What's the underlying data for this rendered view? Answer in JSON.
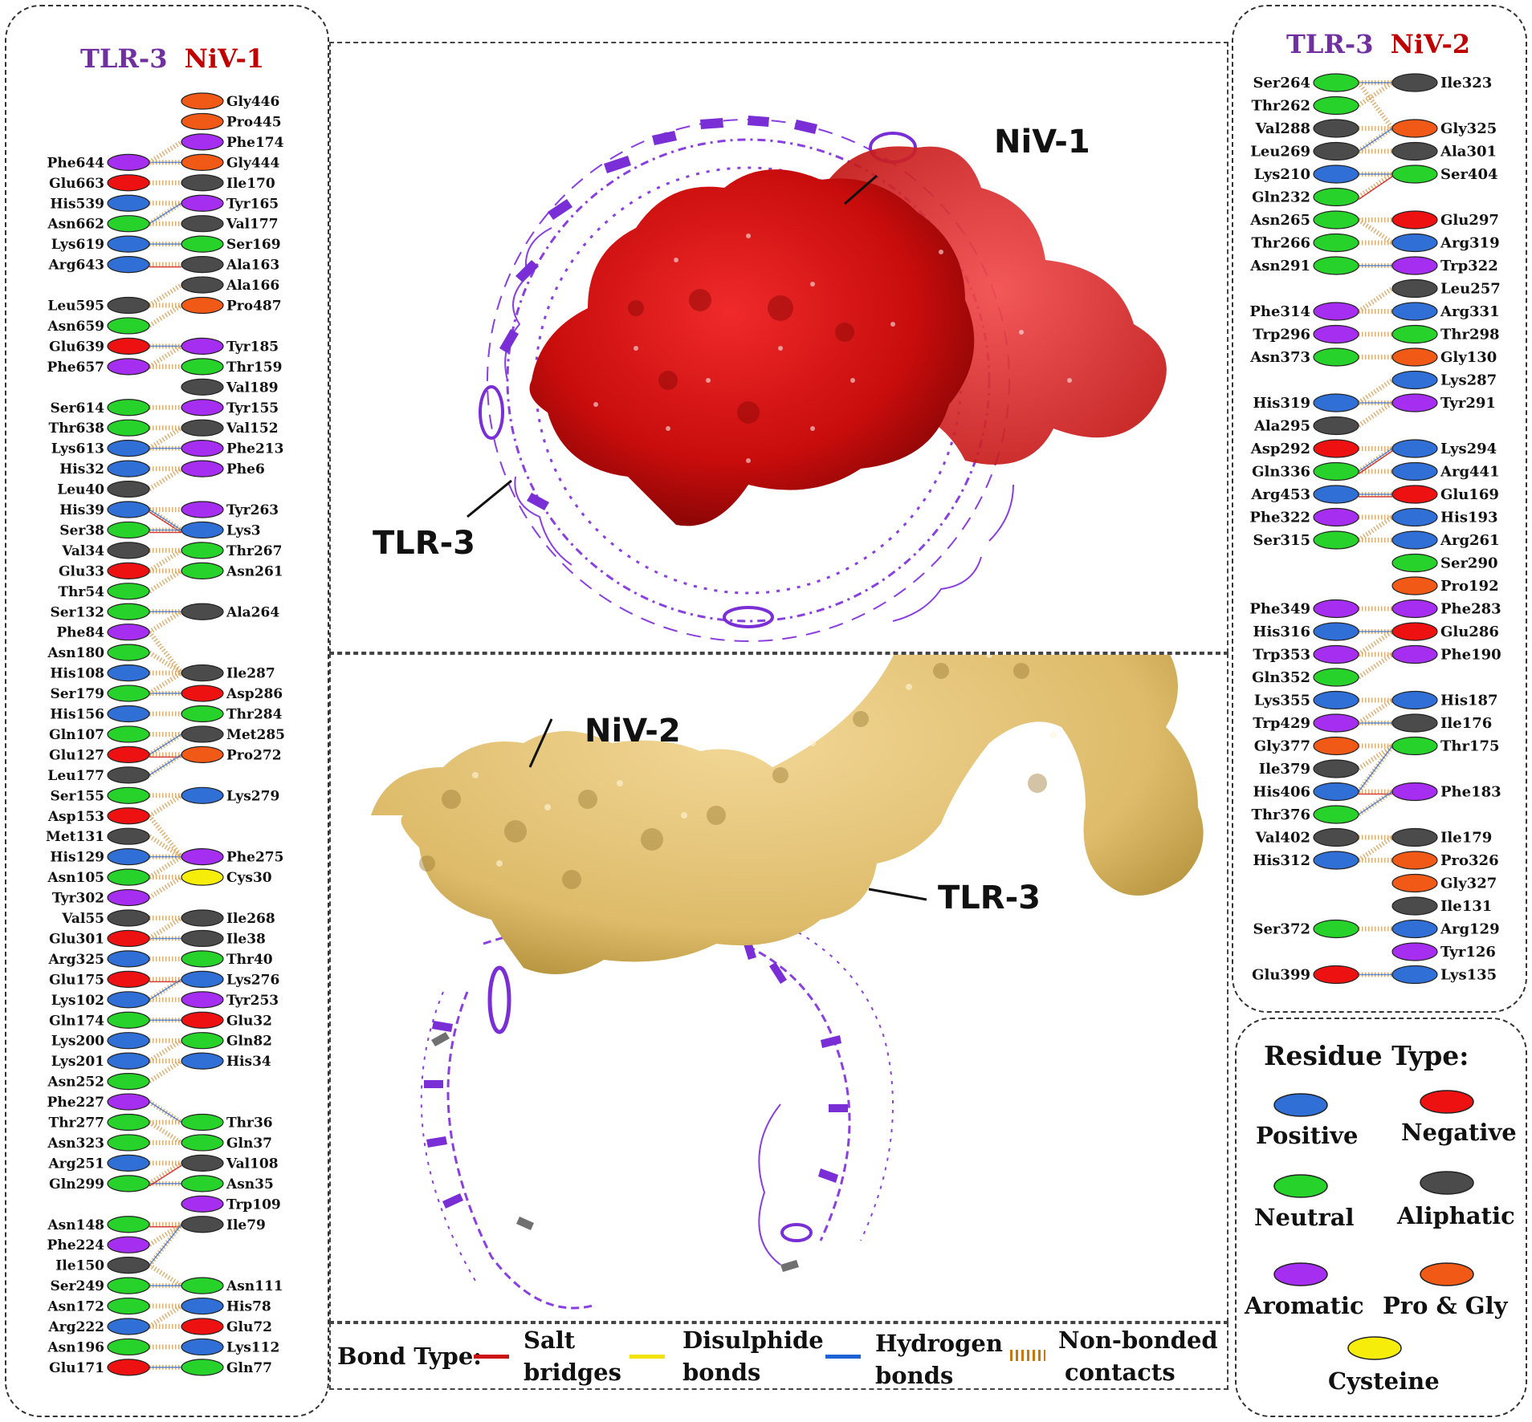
{
  "left_panel": {
    "title_a": "TLR-3",
    "title_b": "NiV-1",
    "left_residues": [
      {
        "name": "Phe644",
        "type": "aromatic",
        "row": 3
      },
      {
        "name": "Glu663",
        "type": "negative",
        "row": 4
      },
      {
        "name": "His539",
        "type": "positive",
        "row": 5
      },
      {
        "name": "Asn662",
        "type": "neutral",
        "row": 6
      },
      {
        "name": "Lys619",
        "type": "positive",
        "row": 7
      },
      {
        "name": "Arg643",
        "type": "positive",
        "row": 8
      },
      {
        "name": "Leu595",
        "type": "aliphatic",
        "row": 10
      },
      {
        "name": "Asn659",
        "type": "neutral",
        "row": 11
      },
      {
        "name": "Glu639",
        "type": "negative",
        "row": 12
      },
      {
        "name": "Phe657",
        "type": "aromatic",
        "row": 13
      },
      {
        "name": "Ser614",
        "type": "neutral",
        "row": 15
      },
      {
        "name": "Thr638",
        "type": "neutral",
        "row": 16
      },
      {
        "name": "Lys613",
        "type": "positive",
        "row": 17
      },
      {
        "name": "His32",
        "type": "positive",
        "row": 18
      },
      {
        "name": "Leu40",
        "type": "aliphatic",
        "row": 19
      },
      {
        "name": "His39",
        "type": "positive",
        "row": 20
      },
      {
        "name": "Ser38",
        "type": "neutral",
        "row": 21
      },
      {
        "name": "Val34",
        "type": "aliphatic",
        "row": 22
      },
      {
        "name": "Glu33",
        "type": "negative",
        "row": 23
      },
      {
        "name": "Thr54",
        "type": "neutral",
        "row": 24
      },
      {
        "name": "Ser132",
        "type": "neutral",
        "row": 25
      },
      {
        "name": "Phe84",
        "type": "aromatic",
        "row": 26
      },
      {
        "name": "Asn180",
        "type": "neutral",
        "row": 27
      },
      {
        "name": "His108",
        "type": "positive",
        "row": 28
      },
      {
        "name": "Ser179",
        "type": "neutral",
        "row": 29
      },
      {
        "name": "His156",
        "type": "positive",
        "row": 30
      },
      {
        "name": "Gln107",
        "type": "neutral",
        "row": 31
      },
      {
        "name": "Glu127",
        "type": "negative",
        "row": 32
      },
      {
        "name": "Leu177",
        "type": "aliphatic",
        "row": 33
      },
      {
        "name": "Ser155",
        "type": "neutral",
        "row": 34
      },
      {
        "name": "Asp153",
        "type": "negative",
        "row": 35
      },
      {
        "name": "Met131",
        "type": "aliphatic",
        "row": 36
      },
      {
        "name": "His129",
        "type": "positive",
        "row": 37
      },
      {
        "name": "Asn105",
        "type": "neutral",
        "row": 38
      },
      {
        "name": "Tyr302",
        "type": "aromatic",
        "row": 39
      },
      {
        "name": "Val55",
        "type": "aliphatic",
        "row": 40
      },
      {
        "name": "Glu301",
        "type": "negative",
        "row": 41
      },
      {
        "name": "Arg325",
        "type": "positive",
        "row": 42
      },
      {
        "name": "Glu175",
        "type": "negative",
        "row": 43
      },
      {
        "name": "Lys102",
        "type": "positive",
        "row": 44
      },
      {
        "name": "Gln174",
        "type": "neutral",
        "row": 45
      },
      {
        "name": "Lys200",
        "type": "positive",
        "row": 46
      },
      {
        "name": "Lys201",
        "type": "positive",
        "row": 47
      },
      {
        "name": "Asn252",
        "type": "neutral",
        "row": 48
      },
      {
        "name": "Phe227",
        "type": "aromatic",
        "row": 49
      },
      {
        "name": "Thr277",
        "type": "neutral",
        "row": 50
      },
      {
        "name": "Asn323",
        "type": "neutral",
        "row": 51
      },
      {
        "name": "Arg251",
        "type": "positive",
        "row": 52
      },
      {
        "name": "Gln299",
        "type": "neutral",
        "row": 53
      },
      {
        "name": "Asn148",
        "type": "neutral",
        "row": 55
      },
      {
        "name": "Phe224",
        "type": "aromatic",
        "row": 56
      },
      {
        "name": "Ile150",
        "type": "aliphatic",
        "row": 57
      },
      {
        "name": "Ser249",
        "type": "neutral",
        "row": 58
      },
      {
        "name": "Asn172",
        "type": "neutral",
        "row": 59
      },
      {
        "name": "Arg222",
        "type": "positive",
        "row": 60
      },
      {
        "name": "Asn196",
        "type": "neutral",
        "row": 61
      },
      {
        "name": "Glu171",
        "type": "negative",
        "row": 62
      }
    ],
    "right_residues": [
      {
        "name": "Gly446",
        "type": "progly",
        "row": 0
      },
      {
        "name": "Pro445",
        "type": "progly",
        "row": 1
      },
      {
        "name": "Phe174",
        "type": "aromatic",
        "row": 2
      },
      {
        "name": "Gly444",
        "type": "progly",
        "row": 3
      },
      {
        "name": "Ile170",
        "type": "aliphatic",
        "row": 4
      },
      {
        "name": "Tyr165",
        "type": "aromatic",
        "row": 5
      },
      {
        "name": "Val177",
        "type": "aliphatic",
        "row": 6
      },
      {
        "name": "Ser169",
        "type": "neutral",
        "row": 7
      },
      {
        "name": "Ala163",
        "type": "aliphatic",
        "row": 8
      },
      {
        "name": "Ala166",
        "type": "aliphatic",
        "row": 9
      },
      {
        "name": "Pro487",
        "type": "progly",
        "row": 10
      },
      {
        "name": "Tyr185",
        "type": "aromatic",
        "row": 12
      },
      {
        "name": "Thr159",
        "type": "neutral",
        "row": 13
      },
      {
        "name": "Val189",
        "type": "aliphatic",
        "row": 14
      },
      {
        "name": "Tyr155",
        "type": "aromatic",
        "row": 15
      },
      {
        "name": "Val152",
        "type": "aliphatic",
        "row": 16
      },
      {
        "name": "Phe213",
        "type": "aromatic",
        "row": 17
      },
      {
        "name": "Phe6",
        "type": "aromatic",
        "row": 18
      },
      {
        "name": "Tyr263",
        "type": "aromatic",
        "row": 20
      },
      {
        "name": "Lys3",
        "type": "positive",
        "row": 21
      },
      {
        "name": "Thr267",
        "type": "neutral",
        "row": 22
      },
      {
        "name": "Asn261",
        "type": "neutral",
        "row": 23
      },
      {
        "name": "Ala264",
        "type": "aliphatic",
        "row": 25
      },
      {
        "name": "Ile287",
        "type": "aliphatic",
        "row": 28
      },
      {
        "name": "Asp286",
        "type": "negative",
        "row": 29
      },
      {
        "name": "Thr284",
        "type": "neutral",
        "row": 30
      },
      {
        "name": "Met285",
        "type": "aliphatic",
        "row": 31
      },
      {
        "name": "Pro272",
        "type": "progly",
        "row": 32
      },
      {
        "name": "Lys279",
        "type": "positive",
        "row": 34
      },
      {
        "name": "Phe275",
        "type": "aromatic",
        "row": 37
      },
      {
        "name": "Cys30",
        "type": "cysteine",
        "row": 38
      },
      {
        "name": "Ile268",
        "type": "aliphatic",
        "row": 40
      },
      {
        "name": "Ile38",
        "type": "aliphatic",
        "row": 41
      },
      {
        "name": "Thr40",
        "type": "neutral",
        "row": 42
      },
      {
        "name": "Lys276",
        "type": "positive",
        "row": 43
      },
      {
        "name": "Tyr253",
        "type": "aromatic",
        "row": 44
      },
      {
        "name": "Glu32",
        "type": "negative",
        "row": 45
      },
      {
        "name": "Gln82",
        "type": "neutral",
        "row": 46
      },
      {
        "name": "His34",
        "type": "positive",
        "row": 47
      },
      {
        "name": "Thr36",
        "type": "neutral",
        "row": 50
      },
      {
        "name": "Gln37",
        "type": "neutral",
        "row": 51
      },
      {
        "name": "Val108",
        "type": "aliphatic",
        "row": 52
      },
      {
        "name": "Asn35",
        "type": "neutral",
        "row": 53
      },
      {
        "name": "Trp109",
        "type": "aromatic",
        "row": 54
      },
      {
        "name": "Ile79",
        "type": "aliphatic",
        "row": 55
      },
      {
        "name": "Asn111",
        "type": "neutral",
        "row": 58
      },
      {
        "name": "His78",
        "type": "positive",
        "row": 59
      },
      {
        "name": "Glu72",
        "type": "negative",
        "row": 60
      },
      {
        "name": "Lys112",
        "type": "positive",
        "row": 61
      },
      {
        "name": "Gln77",
        "type": "neutral",
        "row": 62
      }
    ]
  },
  "right_panel": {
    "title_a": "TLR-3",
    "title_b": "NiV-2",
    "left_residues": [
      {
        "name": "Ser264",
        "type": "neutral",
        "row": 0
      },
      {
        "name": "Thr262",
        "type": "neutral",
        "row": 1
      },
      {
        "name": "Val288",
        "type": "aliphatic",
        "row": 2
      },
      {
        "name": "Leu269",
        "type": "aliphatic",
        "row": 3
      },
      {
        "name": "Lys210",
        "type": "positive",
        "row": 4
      },
      {
        "name": "Gln232",
        "type": "neutral",
        "row": 5
      },
      {
        "name": "Asn265",
        "type": "neutral",
        "row": 6
      },
      {
        "name": "Thr266",
        "type": "neutral",
        "row": 7
      },
      {
        "name": "Asn291",
        "type": "neutral",
        "row": 8
      },
      {
        "name": "Phe314",
        "type": "aromatic",
        "row": 10
      },
      {
        "name": "Trp296",
        "type": "aromatic",
        "row": 11
      },
      {
        "name": "Asn373",
        "type": "neutral",
        "row": 12
      },
      {
        "name": "His319",
        "type": "positive",
        "row": 14
      },
      {
        "name": "Ala295",
        "type": "aliphatic",
        "row": 15
      },
      {
        "name": "Asp292",
        "type": "negative",
        "row": 16
      },
      {
        "name": "Gln336",
        "type": "neutral",
        "row": 17
      },
      {
        "name": "Arg453",
        "type": "positive",
        "row": 18
      },
      {
        "name": "Phe322",
        "type": "aromatic",
        "row": 19
      },
      {
        "name": "Ser315",
        "type": "neutral",
        "row": 20
      },
      {
        "name": "Phe349",
        "type": "aromatic",
        "row": 23
      },
      {
        "name": "His316",
        "type": "positive",
        "row": 24
      },
      {
        "name": "Trp353",
        "type": "aromatic",
        "row": 25
      },
      {
        "name": "Gln352",
        "type": "neutral",
        "row": 26
      },
      {
        "name": "Lys355",
        "type": "positive",
        "row": 27
      },
      {
        "name": "Trp429",
        "type": "aromatic",
        "row": 28
      },
      {
        "name": "Gly377",
        "type": "progly",
        "row": 29
      },
      {
        "name": "Ile379",
        "type": "aliphatic",
        "row": 30
      },
      {
        "name": "His406",
        "type": "positive",
        "row": 31
      },
      {
        "name": "Thr376",
        "type": "neutral",
        "row": 32
      },
      {
        "name": "Val402",
        "type": "aliphatic",
        "row": 33
      },
      {
        "name": "His312",
        "type": "positive",
        "row": 34
      },
      {
        "name": "Ser372",
        "type": "neutral",
        "row": 37
      },
      {
        "name": "Glu399",
        "type": "negative",
        "row": 39
      }
    ],
    "right_residues": [
      {
        "name": "Ile323",
        "type": "aliphatic",
        "row": 0
      },
      {
        "name": "Gly325",
        "type": "progly",
        "row": 2
      },
      {
        "name": "Ala301",
        "type": "aliphatic",
        "row": 3
      },
      {
        "name": "Ser404",
        "type": "neutral",
        "row": 4
      },
      {
        "name": "Glu297",
        "type": "negative",
        "row": 6
      },
      {
        "name": "Arg319",
        "type": "positive",
        "row": 7
      },
      {
        "name": "Trp322",
        "type": "aromatic",
        "row": 8
      },
      {
        "name": "Leu257",
        "type": "aliphatic",
        "row": 9
      },
      {
        "name": "Arg331",
        "type": "positive",
        "row": 10
      },
      {
        "name": "Thr298",
        "type": "neutral",
        "row": 11
      },
      {
        "name": "Gly130",
        "type": "progly",
        "row": 12
      },
      {
        "name": "Lys287",
        "type": "positive",
        "row": 13
      },
      {
        "name": "Tyr291",
        "type": "aromatic",
        "row": 14
      },
      {
        "name": "Lys294",
        "type": "positive",
        "row": 16
      },
      {
        "name": "Arg441",
        "type": "positive",
        "row": 17
      },
      {
        "name": "Glu169",
        "type": "negative",
        "row": 18
      },
      {
        "name": "His193",
        "type": "positive",
        "row": 19
      },
      {
        "name": "Arg261",
        "type": "positive",
        "row": 20
      },
      {
        "name": "Ser290",
        "type": "neutral",
        "row": 21
      },
      {
        "name": "Pro192",
        "type": "progly",
        "row": 22
      },
      {
        "name": "Phe283",
        "type": "aromatic",
        "row": 23
      },
      {
        "name": "Glu286",
        "type": "negative",
        "row": 24
      },
      {
        "name": "Phe190",
        "type": "aromatic",
        "row": 25
      },
      {
        "name": "His187",
        "type": "positive",
        "row": 27
      },
      {
        "name": "Ile176",
        "type": "aliphatic",
        "row": 28
      },
      {
        "name": "Thr175",
        "type": "neutral",
        "row": 29
      },
      {
        "name": "Phe183",
        "type": "aromatic",
        "row": 31
      },
      {
        "name": "Ile179",
        "type": "aliphatic",
        "row": 33
      },
      {
        "name": "Pro326",
        "type": "progly",
        "row": 34
      },
      {
        "name": "Gly327",
        "type": "progly",
        "row": 35
      },
      {
        "name": "Ile131",
        "type": "aliphatic",
        "row": 36
      },
      {
        "name": "Arg129",
        "type": "positive",
        "row": 37
      },
      {
        "name": "Tyr126",
        "type": "aromatic",
        "row": 38
      },
      {
        "name": "Lys135",
        "type": "positive",
        "row": 39
      }
    ]
  },
  "structures": {
    "top_niv": "NiV-1",
    "top_tlr": "TLR-3",
    "bottom_niv": "NiV-2",
    "bottom_tlr": "TLR-3"
  },
  "residue_legend": {
    "title": "Residue Type:",
    "items": [
      {
        "key": "positive",
        "label": "Positive"
      },
      {
        "key": "negative",
        "label": "Negative"
      },
      {
        "key": "neutral",
        "label": "Neutral"
      },
      {
        "key": "aliphatic",
        "label": "Aliphatic"
      },
      {
        "key": "aromatic",
        "label": "Aromatic"
      },
      {
        "key": "progly",
        "label": "Pro & Gly"
      },
      {
        "key": "cysteine",
        "label": "Cysteine"
      }
    ]
  },
  "bond_legend": {
    "title": "Bond Type",
    "items": [
      {
        "line1": "Salt",
        "line2": "bridges",
        "color": "#cc1111"
      },
      {
        "line1": "Disulphide",
        "line2": "bonds",
        "color": "#f2e200"
      },
      {
        "line1": "Hydrogen",
        "line2": "bonds",
        "color": "#1e63d6"
      },
      {
        "line1": "Non-bonded",
        "line2": "contacts",
        "color": "#c8780a"
      }
    ]
  },
  "colors": {
    "positive": "#2f6fd6",
    "negative": "#ee1111",
    "neutral": "#27d32a",
    "aliphatic": "#4b4b4b",
    "aromatic": "#a52ef0",
    "progly": "#f05a16",
    "cysteine": "#f6ee0a",
    "tlr_text": "#7030a0",
    "niv_text": "#c00000",
    "niv1_surface": "#d81414",
    "niv2_surface": "#e4c47a",
    "tlr_ribbon": "#8a3fe0"
  }
}
